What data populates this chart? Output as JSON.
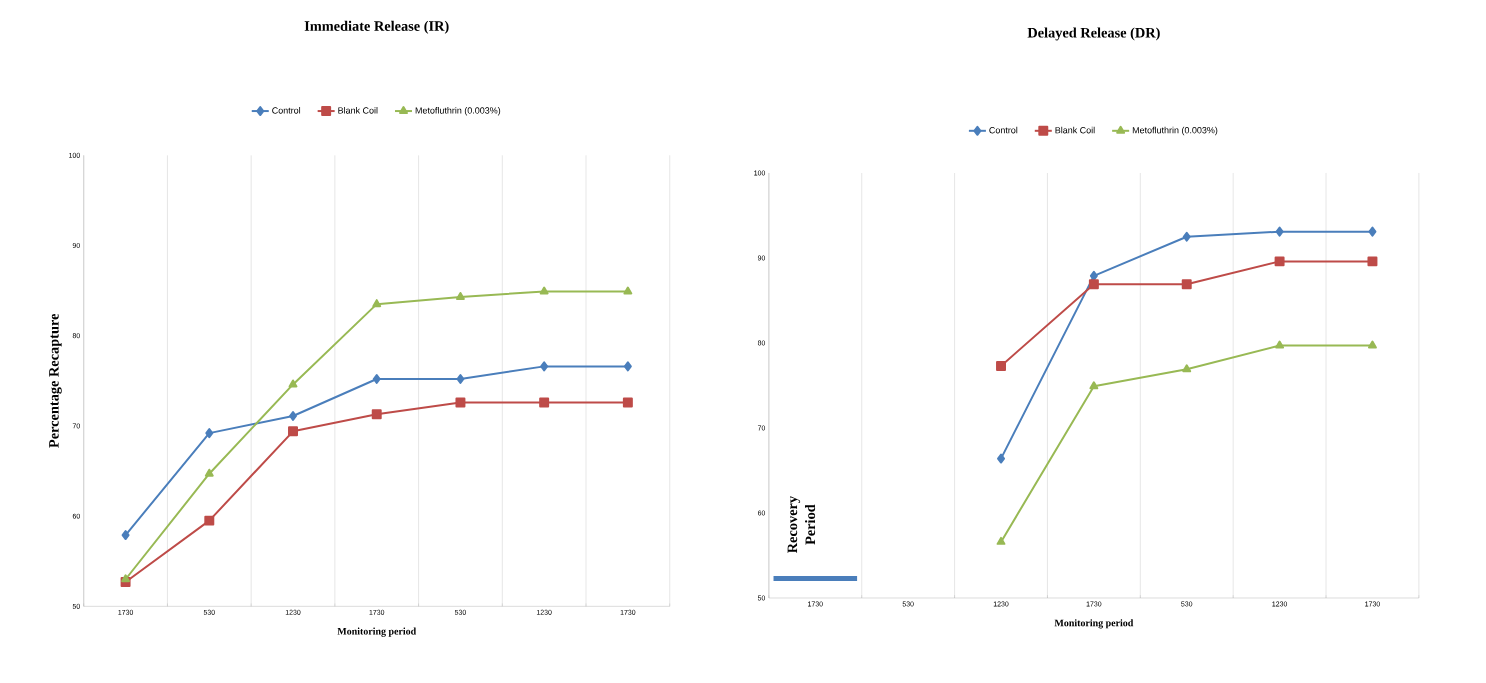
{
  "chart_data": [
    {
      "type": "line",
      "title": "Immediate Release (IR)",
      "xlabel": "Monitoring period",
      "ylabel": "Percentage Recapture",
      "categories": [
        "1730",
        "530",
        "1230",
        "1730",
        "530",
        "1230",
        "1730"
      ],
      "series": [
        {
          "name": "Control",
          "color": "#4a7ebb",
          "marker": "diamond",
          "values": [
            57.9,
            69.2,
            71.1,
            75.2,
            75.2,
            76.6,
            76.6
          ]
        },
        {
          "name": "Blank Coil",
          "color": "#be4b48",
          "marker": "square",
          "values": [
            52.7,
            59.5,
            69.4,
            71.3,
            72.6,
            72.6,
            72.6
          ]
        },
        {
          "name": "Metofluthrin (0.003%)",
          "color": "#98b954",
          "marker": "triangle",
          "values": [
            53.0,
            64.7,
            74.6,
            83.5,
            84.3,
            84.9,
            84.9
          ]
        }
      ],
      "ylim": [
        50,
        100
      ],
      "yticks": [
        50,
        60,
        70,
        80,
        90,
        100
      ],
      "grid": "x",
      "legend": "top"
    },
    {
      "type": "line",
      "title": "Delayed Release (DR)",
      "xlabel": "Monitoring period",
      "categories": [
        "1730",
        "530",
        "1230",
        "1730",
        "530",
        "1230",
        "1730"
      ],
      "series": [
        {
          "name": "Control",
          "color": "#4a7ebb",
          "marker": "diamond",
          "values": [
            null,
            null,
            66.4,
            87.9,
            92.5,
            93.1,
            93.1
          ]
        },
        {
          "name": "Blank Coil",
          "color": "#be4b48",
          "marker": "square",
          "values": [
            null,
            null,
            77.3,
            86.9,
            86.9,
            89.6,
            89.6
          ]
        },
        {
          "name": "Metofluthrin (0.003%)",
          "color": "#98b954",
          "marker": "triangle",
          "values": [
            null,
            null,
            56.6,
            74.9,
            76.9,
            79.7,
            79.7
          ]
        },
        {
          "name": "Recovery Period",
          "color": "#4a7ebb",
          "type": "bar",
          "base": [
            52.0,
            null,
            null,
            null,
            null,
            null,
            null
          ],
          "values": [
            0.6,
            null,
            null,
            null,
            null,
            null,
            null
          ]
        }
      ],
      "ylim": [
        50,
        100
      ],
      "yticks": [
        50,
        60,
        70,
        80,
        90,
        100
      ],
      "grid": "x",
      "legend": "top"
    }
  ]
}
